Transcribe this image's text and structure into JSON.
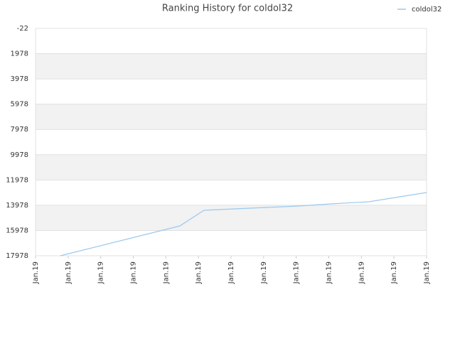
{
  "chart_data": {
    "type": "line",
    "title": "Ranking History for coldol32",
    "x": [
      0.76,
      4.43,
      5.17,
      6.11,
      7.09,
      8.07,
      9.05,
      10.23,
      12
    ],
    "series": [
      {
        "name": "coldol32",
        "color": "#99c9f0",
        "values": [
          17978,
          15616,
          14378,
          14266,
          14153,
          14041,
          13872,
          13703,
          12972
        ]
      }
    ],
    "xlim": [
      0,
      12
    ],
    "xticks": [
      {
        "value": 0,
        "label": "Jan.19"
      },
      {
        "value": 1,
        "label": "Jan.19"
      },
      {
        "value": 2,
        "label": "Jan.19"
      },
      {
        "value": 3,
        "label": "Jan.19"
      },
      {
        "value": 4,
        "label": "Jan.19"
      },
      {
        "value": 5,
        "label": "Jan.19"
      },
      {
        "value": 6,
        "label": "Jan.19"
      },
      {
        "value": 7,
        "label": "Jan.19"
      },
      {
        "value": 8,
        "label": "Jan.19"
      },
      {
        "value": 9,
        "label": "Jan.19"
      },
      {
        "value": 10,
        "label": "Jan.19"
      },
      {
        "value": 11,
        "label": "Jan.19"
      },
      {
        "value": 12,
        "label": "Jan.19"
      }
    ],
    "ylim": [
      -22,
      17978
    ],
    "yticks": [
      -22,
      1978,
      3978,
      5978,
      7978,
      9978,
      11978,
      13978,
      15978,
      17978
    ],
    "y_reversed": true,
    "grid": true,
    "legend": "top-right"
  }
}
